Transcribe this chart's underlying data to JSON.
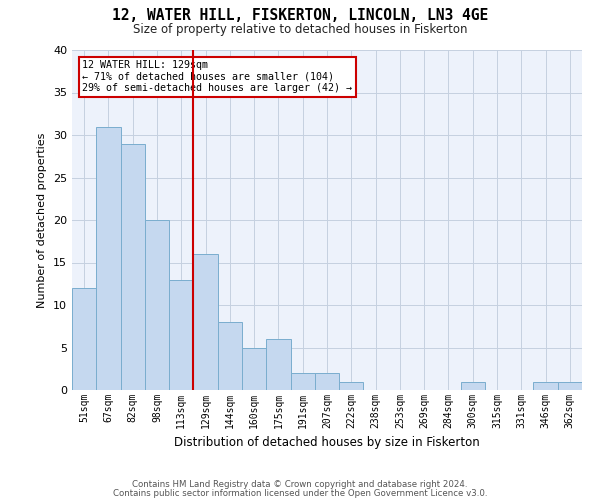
{
  "title": "12, WATER HILL, FISKERTON, LINCOLN, LN3 4GE",
  "subtitle": "Size of property relative to detached houses in Fiskerton",
  "xlabel": "Distribution of detached houses by size in Fiskerton",
  "ylabel": "Number of detached properties",
  "categories": [
    "51sqm",
    "67sqm",
    "82sqm",
    "98sqm",
    "113sqm",
    "129sqm",
    "144sqm",
    "160sqm",
    "175sqm",
    "191sqm",
    "207sqm",
    "222sqm",
    "238sqm",
    "253sqm",
    "269sqm",
    "284sqm",
    "300sqm",
    "315sqm",
    "331sqm",
    "346sqm",
    "362sqm"
  ],
  "values": [
    12,
    31,
    29,
    20,
    13,
    16,
    8,
    5,
    6,
    2,
    2,
    1,
    0,
    0,
    0,
    0,
    1,
    0,
    0,
    1,
    1
  ],
  "bar_color": "#c5d8ef",
  "bar_edge_color": "#7aadce",
  "highlight_index": 5,
  "highlight_line_color": "#cc0000",
  "ylim": [
    0,
    40
  ],
  "yticks": [
    0,
    5,
    10,
    15,
    20,
    25,
    30,
    35,
    40
  ],
  "annotation_text": "12 WATER HILL: 129sqm\n← 71% of detached houses are smaller (104)\n29% of semi-detached houses are larger (42) →",
  "annotation_box_color": "#cc0000",
  "footer_line1": "Contains HM Land Registry data © Crown copyright and database right 2024.",
  "footer_line2": "Contains public sector information licensed under the Open Government Licence v3.0.",
  "background_color": "#edf2fb",
  "grid_color": "#c5d0e0"
}
